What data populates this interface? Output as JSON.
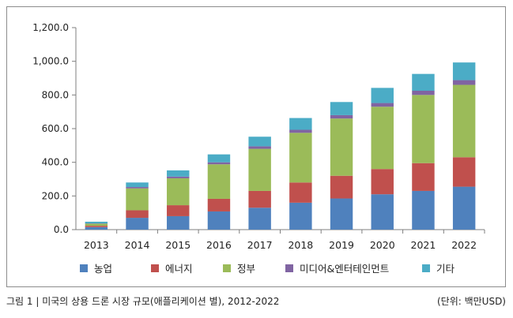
{
  "chart_data": {
    "type": "bar",
    "stacked": true,
    "categories": [
      "2013",
      "2014",
      "2015",
      "2016",
      "2017",
      "2018",
      "2019",
      "2020",
      "2021",
      "2022"
    ],
    "series": [
      {
        "name": "농업",
        "color": "#4f81bd",
        "values": [
          15,
          70,
          80,
          108,
          130,
          160,
          185,
          210,
          230,
          255
        ]
      },
      {
        "name": "에너지",
        "color": "#c0504d",
        "values": [
          8,
          45,
          65,
          75,
          100,
          120,
          135,
          150,
          165,
          175
        ]
      },
      {
        "name": "정부",
        "color": "#9bbb59",
        "values": [
          12,
          130,
          160,
          205,
          250,
          295,
          340,
          370,
          405,
          430
        ]
      },
      {
        "name": "미디어&엔터테인먼트",
        "color": "#8064a2",
        "values": [
          2,
          8,
          10,
          12,
          15,
          18,
          20,
          22,
          25,
          28
        ]
      },
      {
        "name": "기타",
        "color": "#4bacc6",
        "values": [
          10,
          27,
          37,
          47,
          57,
          70,
          78,
          90,
          100,
          105
        ]
      }
    ],
    "y_tick_labels": [
      "0.0",
      "200.0",
      "400.0",
      "600.0",
      "800.0",
      "1,000.0",
      "1,200.0"
    ],
    "ylim": [
      0,
      1200
    ],
    "grid": false,
    "legend_position": "bottom"
  },
  "caption": {
    "left": "그림 1 | 미국의 상용 드론 시장 규모(애플리케이션 별), 2012-2022",
    "right": "(단위: 백만USD)"
  }
}
